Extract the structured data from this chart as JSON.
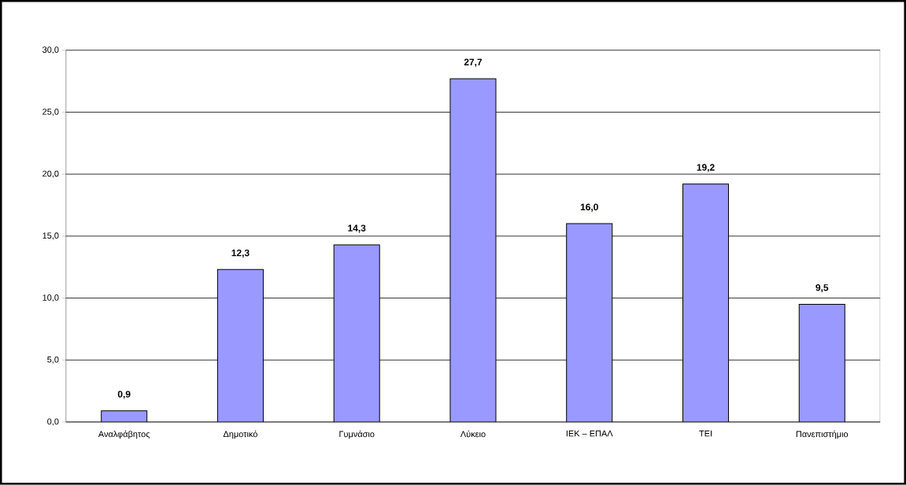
{
  "chart_data": {
    "type": "bar",
    "categories": [
      "Αναλφάβητος",
      "Δημοτικό",
      "Γυμνάσιο",
      "Λύκειο",
      "ΙΕΚ – ΕΠΑΛ",
      "ΤΕΙ",
      "Πανεπιστήμιο"
    ],
    "values": [
      0.9,
      12.3,
      14.3,
      27.7,
      16.0,
      19.2,
      9.5
    ],
    "value_labels": [
      "0,9",
      "12,3",
      "14,3",
      "27,7",
      "16,0",
      "19,2",
      "9,5"
    ],
    "color": "#9999ff",
    "ylim": [
      0,
      30
    ],
    "yticks": [
      {
        "value": 0,
        "label": "0,0"
      },
      {
        "value": 5,
        "label": "5,0"
      },
      {
        "value": 10,
        "label": "10,0"
      },
      {
        "value": 15,
        "label": "15,0"
      },
      {
        "value": 20,
        "label": "20,0"
      },
      {
        "value": 25,
        "label": "25,0"
      },
      {
        "value": 30,
        "label": "30,0"
      }
    ],
    "grid": "y"
  }
}
